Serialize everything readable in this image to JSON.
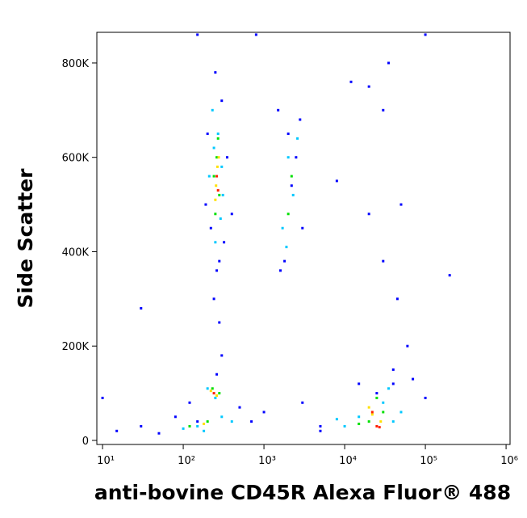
{
  "chart_data": {
    "type": "scatter",
    "x_label": "anti-bovine CD45R Alexa Fluor® 488",
    "y_label": "Side Scatter",
    "xscale": "log",
    "xlim": [
      8.5,
      1120000
    ],
    "ylim": [
      -8600,
      865000
    ],
    "xticks": [
      {
        "value": 10,
        "label": "10¹"
      },
      {
        "value": 100,
        "label": "10²"
      },
      {
        "value": 1000,
        "label": "10³"
      },
      {
        "value": 10000,
        "label": "10⁴"
      },
      {
        "value": 100000,
        "label": "10⁵"
      },
      {
        "value": 1000000,
        "label": "10⁶"
      }
    ],
    "yticks": [
      0,
      {
        "value": 200000,
        "label": "200K"
      },
      {
        "value": 400000,
        "label": "400K"
      },
      {
        "value": 600000,
        "label": "600K"
      },
      {
        "value": 800000,
        "label": "800K"
      }
    ],
    "series": [
      {
        "color": "#0000ff",
        "x": [
          250,
          300,
          200,
          350,
          220,
          280,
          320,
          190,
          260,
          400,
          1500,
          2000,
          2500,
          1800,
          3000,
          2200,
          1600,
          2800,
          12000,
          30000,
          50000,
          8000,
          20000,
          60000,
          40000,
          15000,
          15,
          30,
          50,
          80,
          120,
          150,
          500,
          700,
          1000,
          5000,
          280,
          240,
          300,
          260,
          30000,
          40000,
          25000,
          45000,
          70000,
          100000,
          20000,
          35000,
          5000,
          3000,
          10,
          30,
          200000,
          150,
          800,
          100000
        ],
        "values": [
          780000,
          720000,
          650000,
          600000,
          450000,
          380000,
          420000,
          500000,
          360000,
          480000,
          700000,
          650000,
          600000,
          380000,
          450000,
          540000,
          360000,
          680000,
          760000,
          700000,
          500000,
          550000,
          480000,
          200000,
          150000,
          120000,
          20000,
          30000,
          15000,
          50000,
          80000,
          40000,
          70000,
          40000,
          60000,
          30000,
          250000,
          300000,
          180000,
          140000,
          380000,
          120000,
          100000,
          300000,
          130000,
          90000,
          750000,
          800000,
          20000,
          80000,
          90000,
          280000,
          350000,
          860000,
          860000,
          860000
        ]
      },
      {
        "color": "#00c8ff",
        "x": [
          230,
          270,
          300,
          210,
          250,
          290,
          240,
          310,
          2000,
          2300,
          1700,
          2600,
          1900,
          150,
          300,
          250,
          200,
          180,
          15000,
          30000,
          40000,
          10000,
          50000,
          8000,
          35000,
          100,
          400
        ],
        "values": [
          700000,
          650000,
          580000,
          560000,
          420000,
          470000,
          620000,
          520000,
          600000,
          520000,
          450000,
          640000,
          410000,
          30000,
          50000,
          90000,
          110000,
          20000,
          50000,
          80000,
          40000,
          30000,
          60000,
          45000,
          110000,
          25000,
          40000
        ]
      },
      {
        "color": "#00e000",
        "x": [
          260,
          240,
          280,
          270,
          250,
          2200,
          2000,
          200,
          230,
          280,
          120,
          20000,
          30000,
          15000,
          25000
        ],
        "values": [
          600000,
          560000,
          520000,
          640000,
          480000,
          560000,
          480000,
          40000,
          110000,
          100000,
          30000,
          40000,
          60000,
          35000,
          90000
        ]
      },
      {
        "color": "#ffe000",
        "x": [
          265,
          255,
          275,
          250,
          220,
          260,
          180,
          22000,
          28000,
          20000
        ],
        "values": [
          580000,
          540000,
          600000,
          510000,
          105000,
          95000,
          35000,
          55000,
          40000,
          70000
        ]
      },
      {
        "color": "#ff2000",
        "x": [
          260,
          270,
          240,
          25000,
          22000,
          27000
        ],
        "values": [
          560000,
          530000,
          100000,
          30000,
          60000,
          28000
        ]
      }
    ]
  }
}
